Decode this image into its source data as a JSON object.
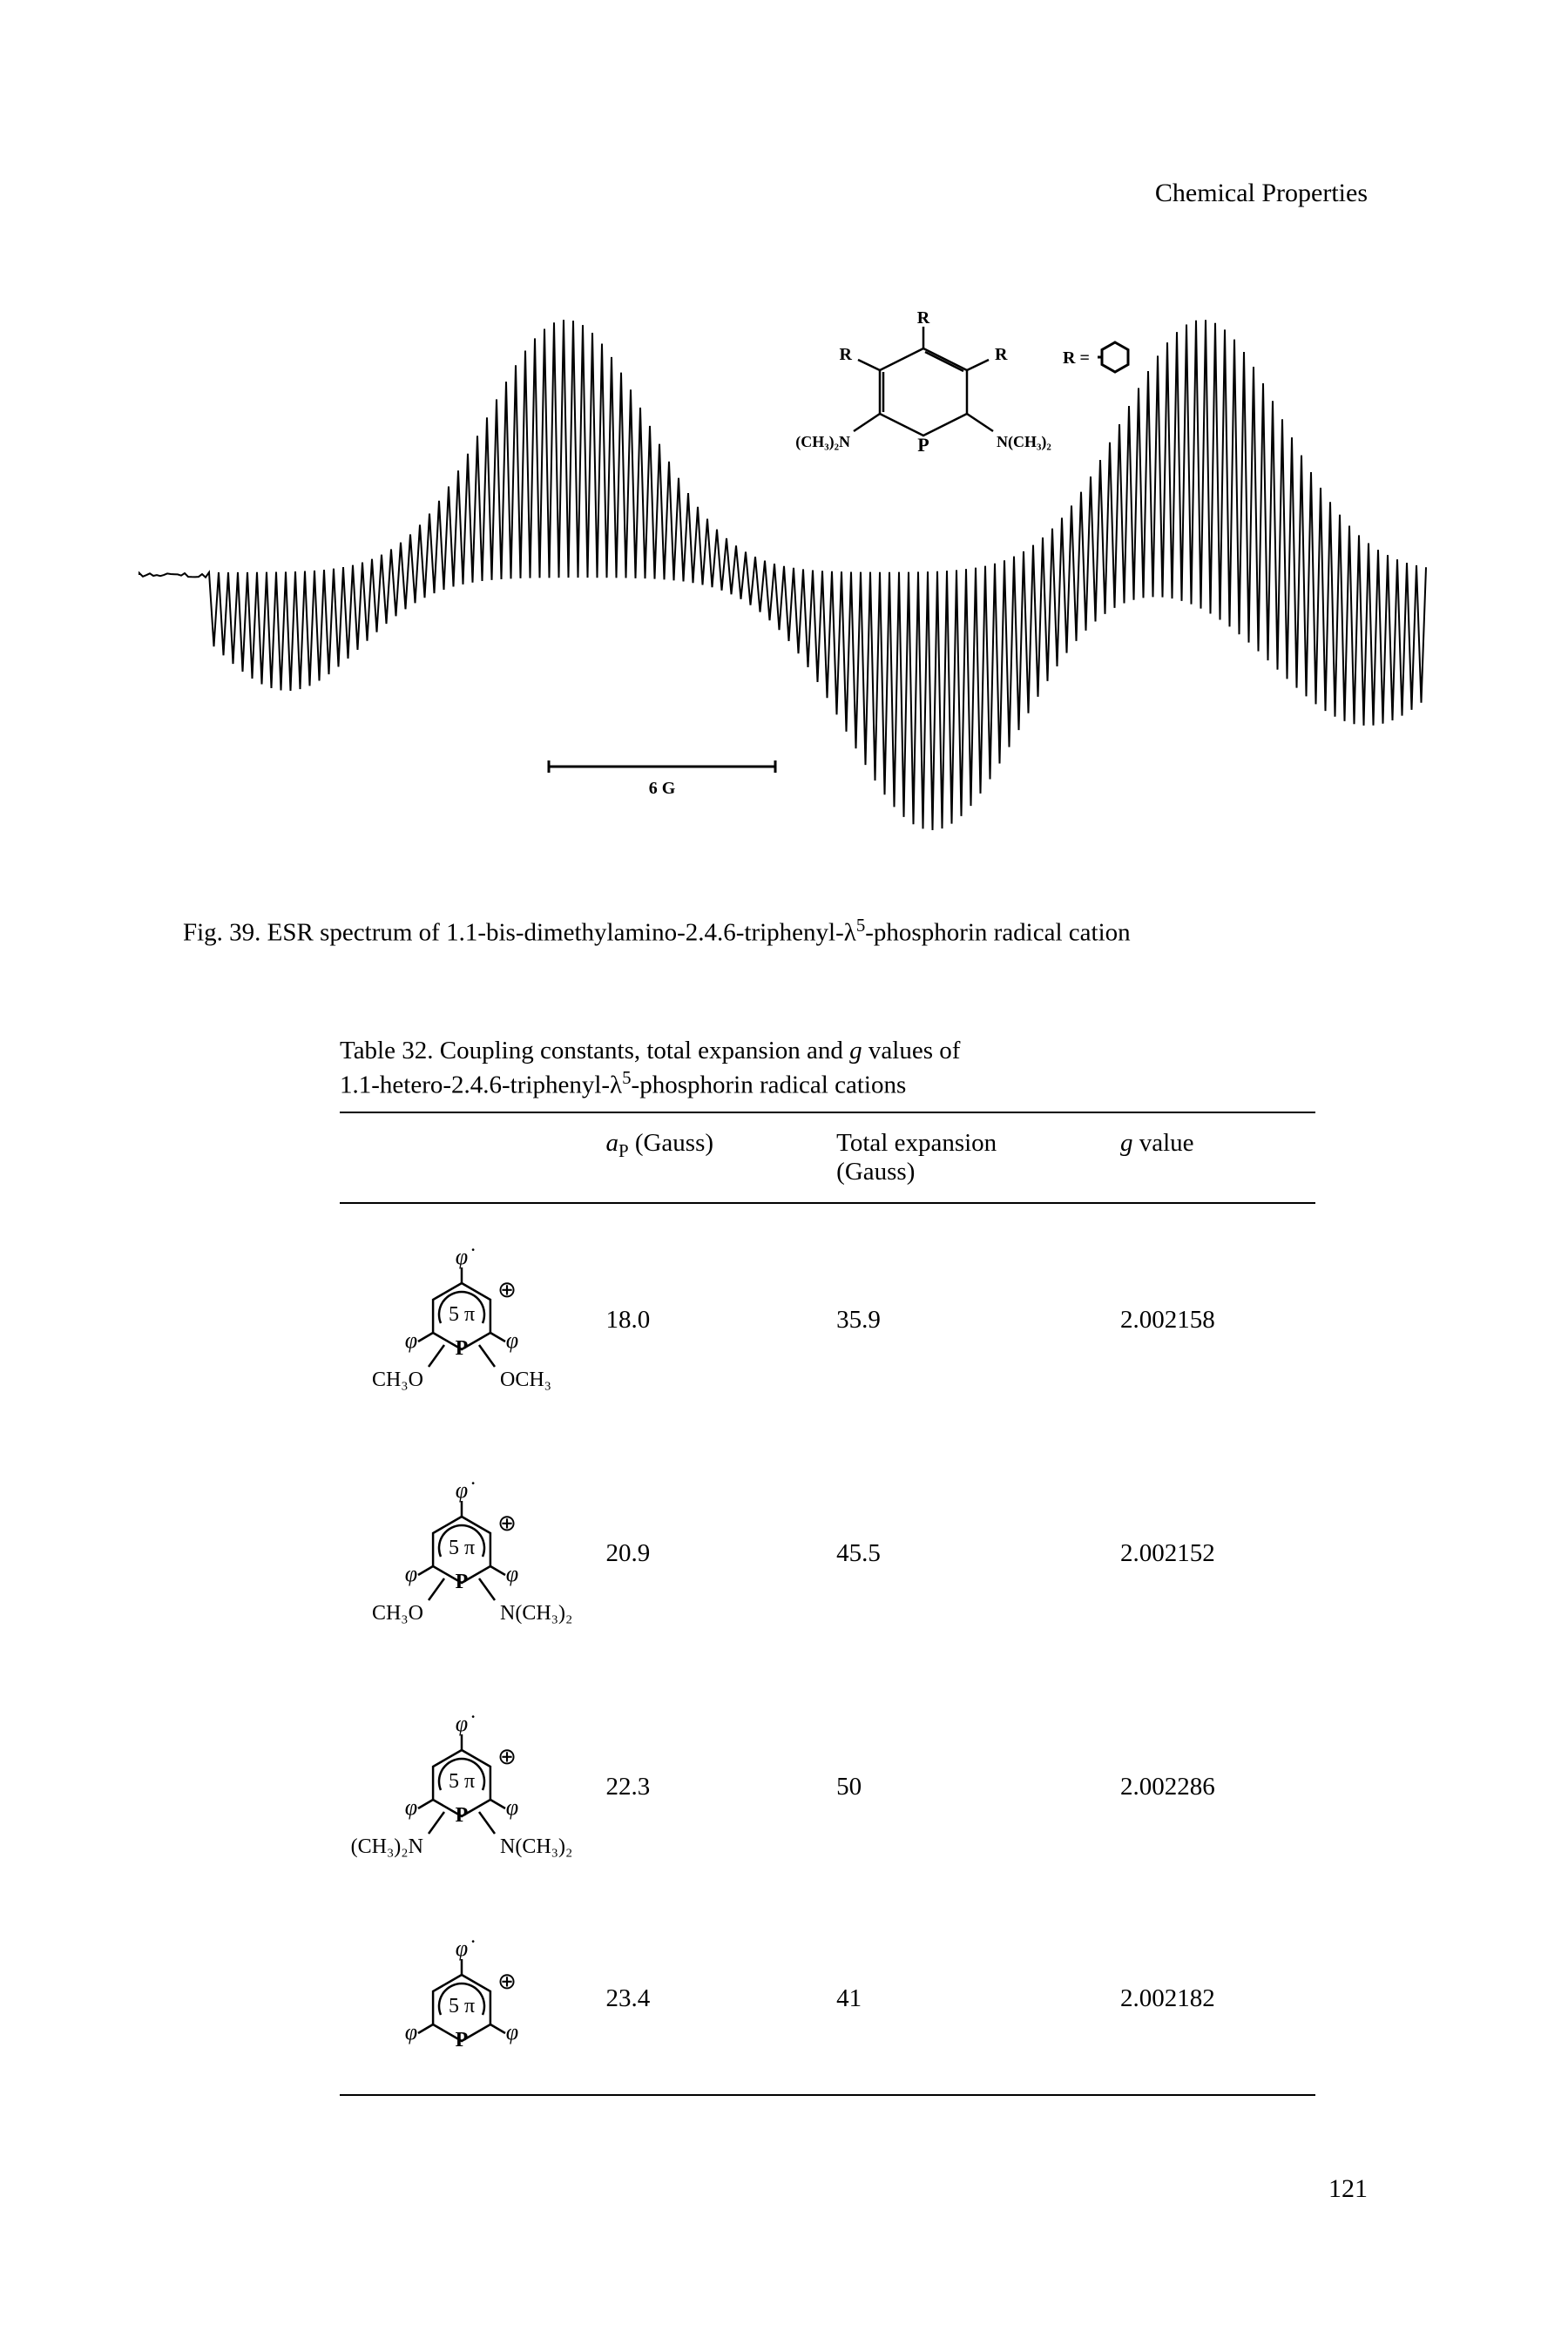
{
  "header": {
    "right": "Chemical Properties"
  },
  "spectrum": {
    "scale_label": "6 G",
    "inset": {
      "top_label": "R",
      "left_label": "R",
      "right_label": "R",
      "bl_label": "(CH₃)₂N",
      "br_label": "N(CH₃)₂",
      "r_eq": "R =",
      "benzene_placeholder": "⌬"
    },
    "stroke_color": "#000000",
    "background_color": "#ffffff"
  },
  "figure_caption": {
    "prefix": "Fig. 39. ESR spectrum of 1.1-bis-dimethylamino-2.4.6-triphenyl-λ",
    "sup": "5",
    "suffix": "-phosphorin radical cation"
  },
  "table": {
    "caption_line1_prefix": "Table 32. Coupling constants, total expansion and ",
    "caption_line1_g": "g",
    "caption_line1_suffix": " values of",
    "caption_line2_prefix": "1.1-hetero-2.4.6-triphenyl-λ",
    "caption_line2_sup": "5",
    "caption_line2_suffix": "-phosphorin radical cations",
    "headers": {
      "ap_prefix": "a",
      "ap_sub": "P",
      "ap_suffix": " (Gauss)",
      "te_line1": "Total expansion",
      "te_line2": "(Gauss)",
      "g_prefix": "g",
      "g_suffix": " value"
    },
    "rows": [
      {
        "sub_left": "CH₃O",
        "sub_right": "OCH₃",
        "ap": "18.0",
        "te": "35.9",
        "g": "2.002158"
      },
      {
        "sub_left": "CH₃O",
        "sub_right": "N(CH₃)₂",
        "ap": "20.9",
        "te": "45.5",
        "g": "2.002152"
      },
      {
        "sub_left": "(CH₃)₂N",
        "sub_right": "N(CH₃)₂",
        "ap": "22.3",
        "te": "50",
        "g": "2.002286"
      },
      {
        "sub_left": "",
        "sub_right": "",
        "ap": "23.4",
        "te": "41",
        "g": "2.002182"
      }
    ],
    "ring_label": "5 π",
    "phi": "φ",
    "phi_dot": "φ̇",
    "plus_circ": "⊕",
    "p_label": "P"
  },
  "page_number": "121",
  "colors": {
    "text": "#000000",
    "background": "#ffffff",
    "rule": "#000000"
  },
  "typography": {
    "body_pt": 29,
    "header_pt": 30,
    "family": "Times New Roman"
  }
}
